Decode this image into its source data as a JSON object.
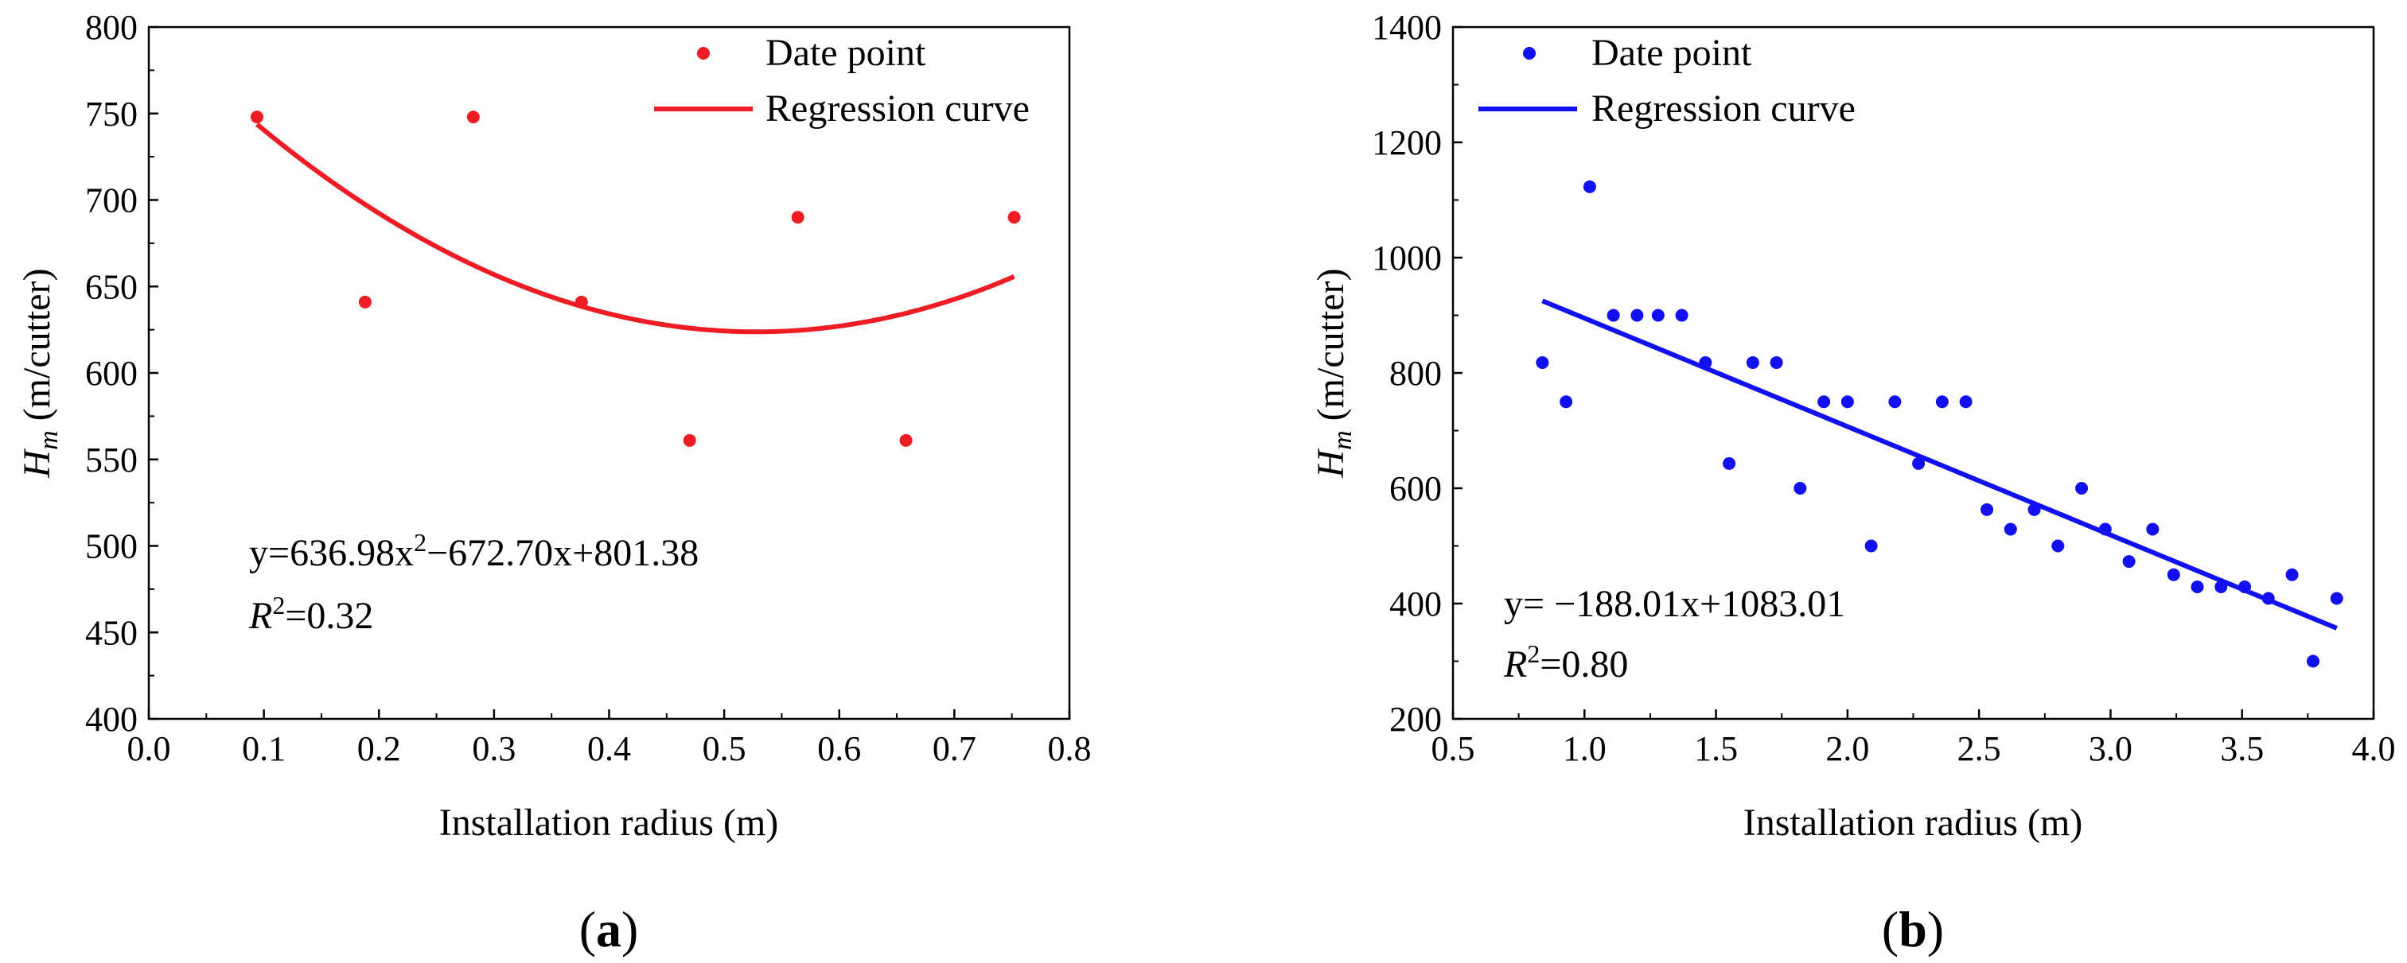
{
  "chart_data": [
    {
      "id": "a",
      "type": "scatter",
      "panel_label": "a",
      "color": "#ee1c24",
      "xlabel": "Installation radius (m)",
      "ylabel_symbol": "H",
      "ylabel_subscript": "m",
      "ylabel_unit": " (m/cutter)",
      "xlim": [
        0.0,
        0.8
      ],
      "ylim": [
        400,
        800
      ],
      "xticks": [
        "0.0",
        "0.1",
        "0.2",
        "0.3",
        "0.4",
        "0.5",
        "0.6",
        "0.7",
        "0.8"
      ],
      "yticks": [
        "400",
        "450",
        "500",
        "550",
        "600",
        "650",
        "700",
        "750",
        "800"
      ],
      "series": [
        {
          "name": "Date point",
          "kind": "points",
          "x": [
            0.094,
            0.188,
            0.282,
            0.376,
            0.47,
            0.564,
            0.658,
            0.752
          ],
          "y": [
            748,
            641,
            748,
            641,
            561,
            690,
            561,
            690
          ]
        },
        {
          "name": "Regression curve",
          "kind": "quadratic",
          "coefficients": [
            636.98,
            -672.7,
            801.38
          ],
          "x_range": [
            0.094,
            0.752
          ]
        }
      ],
      "legend": [
        "Date point",
        "Regression curve"
      ],
      "legend_position": "top-right",
      "equation": {
        "prefix": "y=636.98x",
        "power": "2",
        "suffix": "−672.70x+801.38",
        "r2_symbol": "R",
        "r2_power": "2",
        "r2_value": "=0.32"
      }
    },
    {
      "id": "b",
      "type": "scatter",
      "panel_label": "b",
      "color": "#1010f0",
      "xlabel": "Installation radius (m)",
      "ylabel_symbol": "H",
      "ylabel_subscript": "m",
      "ylabel_unit": " (m/cutter)",
      "xlim": [
        0.5,
        4.0
      ],
      "ylim": [
        200,
        1400
      ],
      "xticks": [
        "0.5",
        "1.0",
        "1.5",
        "2.0",
        "2.5",
        "3.0",
        "3.5",
        "4.0"
      ],
      "yticks": [
        "200",
        "400",
        "600",
        "800",
        "1000",
        "1200",
        "1400"
      ],
      "series": [
        {
          "name": "Date point",
          "kind": "points",
          "x": [
            0.84,
            0.93,
            1.02,
            1.11,
            1.2,
            1.28,
            1.37,
            1.46,
            1.55,
            1.64,
            1.73,
            1.82,
            1.91,
            2.0,
            2.09,
            2.18,
            2.27,
            2.36,
            2.45,
            2.53,
            2.62,
            2.71,
            2.8,
            2.89,
            2.98,
            3.07,
            3.16,
            3.24,
            3.33,
            3.42,
            3.51,
            3.6,
            3.69,
            3.77,
            3.86
          ],
          "y": [
            818,
            750,
            1123,
            900,
            900,
            900,
            900,
            818,
            643,
            818,
            818,
            600,
            750,
            750,
            500,
            750,
            643,
            750,
            750,
            563,
            529,
            563,
            500,
            600,
            529,
            473,
            529,
            450,
            429,
            429,
            429,
            409,
            450,
            300,
            409
          ]
        },
        {
          "name": "Regression curve",
          "kind": "linear",
          "coefficients": [
            -188.01,
            1083.01
          ],
          "x_range": [
            0.84,
            3.86
          ]
        }
      ],
      "legend": [
        "Date point",
        "Regression curve"
      ],
      "legend_position": "top-left",
      "equation": {
        "prefix": "y= −188.01x+1083.01",
        "power": "",
        "suffix": "",
        "r2_symbol": "R",
        "r2_power": "2",
        "r2_value": "=0.80"
      }
    }
  ]
}
